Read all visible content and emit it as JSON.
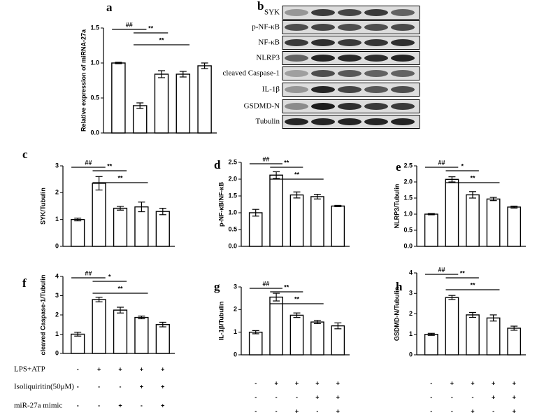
{
  "chart_data": [
    {
      "type": "bar",
      "letter": "a",
      "ylabel": "Relative expression of miRNA-27a",
      "categories": [
        null,
        null,
        null,
        null,
        null
      ],
      "values": [
        1.0,
        0.39,
        0.84,
        0.84,
        0.96
      ],
      "errors": [
        0.01,
        0.04,
        0.05,
        0.04,
        0.04
      ],
      "ylim": [
        0,
        1.5
      ],
      "yticks": [
        {
          "value": 0,
          "label": "0.0"
        },
        0.5,
        {
          "value": 1,
          "label": "1.0"
        },
        1.5
      ],
      "annotations": [
        {
          "text": "##",
          "from": 0,
          "to": 1
        },
        {
          "text": "**",
          "from": 1,
          "to": 2
        },
        {
          "text": "**",
          "from": 1,
          "to": 3
        }
      ]
    },
    {
      "type": "bar",
      "letter": "c",
      "ylabel": "SYK/Tubulin",
      "categories": [
        null,
        null,
        null,
        null,
        null
      ],
      "values": [
        1.0,
        2.35,
        1.42,
        1.47,
        1.3
      ],
      "errors": [
        0.05,
        0.25,
        0.07,
        0.18,
        0.12
      ],
      "ylim": [
        0,
        3
      ],
      "yticks": [
        0,
        1,
        2,
        3
      ],
      "annotations": [
        {
          "text": "##",
          "from": 0,
          "to": 1
        },
        {
          "text": "**",
          "from": 1,
          "to": 2
        },
        {
          "text": "**",
          "from": 1,
          "to": 3
        }
      ]
    },
    {
      "type": "bar",
      "letter": "d",
      "ylabel": "p-NF-κB/NF-κB",
      "categories": [
        null,
        null,
        null,
        null,
        null
      ],
      "values": [
        1.0,
        2.12,
        1.53,
        1.48,
        1.2
      ],
      "errors": [
        0.1,
        0.1,
        0.09,
        0.07,
        0.02
      ],
      "ylim": [
        0,
        2.5
      ],
      "yticks": [
        {
          "value": 0,
          "label": "0.0"
        },
        0.5,
        {
          "value": 1,
          "label": "1.0"
        },
        1.5,
        {
          "value": 2,
          "label": "2.0"
        },
        2.5
      ],
      "annotations": [
        {
          "text": "##",
          "from": 0,
          "to": 1
        },
        {
          "text": "**",
          "from": 1,
          "to": 2
        },
        {
          "text": "**",
          "from": 1,
          "to": 3
        }
      ]
    },
    {
      "type": "bar",
      "letter": "e",
      "ylabel": "NLRP3/Tubulin",
      "categories": [
        null,
        null,
        null,
        null,
        null
      ],
      "values": [
        1.0,
        2.08,
        1.6,
        1.47,
        1.22
      ],
      "errors": [
        0.02,
        0.08,
        0.1,
        0.05,
        0.03
      ],
      "ylim": [
        0,
        2.5
      ],
      "yticks": [
        {
          "value": 0,
          "label": "0.0"
        },
        0.5,
        {
          "value": 1,
          "label": "1.0"
        },
        1.5,
        {
          "value": 2,
          "label": "2.0"
        },
        2.5
      ],
      "annotations": [
        {
          "text": "##",
          "from": 0,
          "to": 1
        },
        {
          "text": "*",
          "from": 1,
          "to": 2
        },
        {
          "text": "**",
          "from": 1,
          "to": 3
        }
      ]
    },
    {
      "type": "bar",
      "letter": "f",
      "ylabel": "cleaved Caspase-1/Tubulin",
      "categories": [
        null,
        null,
        null,
        null,
        null
      ],
      "values": [
        1.0,
        2.8,
        2.25,
        1.87,
        1.5
      ],
      "errors": [
        0.1,
        0.12,
        0.15,
        0.07,
        0.12
      ],
      "ylim": [
        0,
        4
      ],
      "yticks": [
        0,
        1,
        2,
        3,
        4
      ],
      "annotations": [
        {
          "text": "##",
          "from": 0,
          "to": 1
        },
        {
          "text": "*",
          "from": 1,
          "to": 2
        },
        {
          "text": "**",
          "from": 1,
          "to": 3
        }
      ]
    },
    {
      "type": "bar",
      "letter": "g",
      "ylabel": "IL-1β/Tubulin",
      "categories": [
        null,
        null,
        null,
        null,
        null
      ],
      "values": [
        1.0,
        2.55,
        1.75,
        1.45,
        1.28
      ],
      "errors": [
        0.07,
        0.17,
        0.1,
        0.07,
        0.13
      ],
      "ylim": [
        0,
        3
      ],
      "yticks": [
        0,
        1,
        2,
        3
      ],
      "annotations": [
        {
          "text": "##",
          "from": 0,
          "to": 1
        },
        {
          "text": "**",
          "from": 1,
          "to": 2
        },
        {
          "text": "**",
          "from": 1,
          "to": 3
        }
      ]
    },
    {
      "type": "bar",
      "letter": "h",
      "ylabel": "GSDMD-N/Tubulin",
      "categories": [
        null,
        null,
        null,
        null,
        null
      ],
      "values": [
        1.0,
        2.8,
        1.95,
        1.8,
        1.3
      ],
      "errors": [
        0.05,
        0.1,
        0.12,
        0.15,
        0.1
      ],
      "ylim": [
        0,
        4
      ],
      "yticks": [
        0,
        1,
        2,
        3,
        4
      ],
      "annotations": [
        {
          "text": "##",
          "from": 0,
          "to": 1
        },
        {
          "text": "**",
          "from": 1,
          "to": 2
        },
        {
          "text": "**",
          "from": 1,
          "to": 3
        }
      ]
    }
  ],
  "blot": {
    "letter": "b",
    "rows": [
      "SYK",
      "p-NF-κB",
      "NF-κB",
      "NLRP3",
      "cleaved Caspase-1",
      "IL-1β",
      "GSDMD-N",
      "Tubulin"
    ]
  },
  "treatments": {
    "rows": [
      {
        "label": "LPS+ATP",
        "signs": [
          "-",
          "+",
          "+",
          "+",
          "+"
        ]
      },
      {
        "label": "Isoliquiritin(50μM)",
        "signs": [
          "-",
          "-",
          "-",
          "+",
          "+"
        ]
      },
      {
        "label": "miR-27a mimic",
        "signs": [
          "-",
          "-",
          "+",
          "-",
          "+"
        ]
      }
    ]
  }
}
